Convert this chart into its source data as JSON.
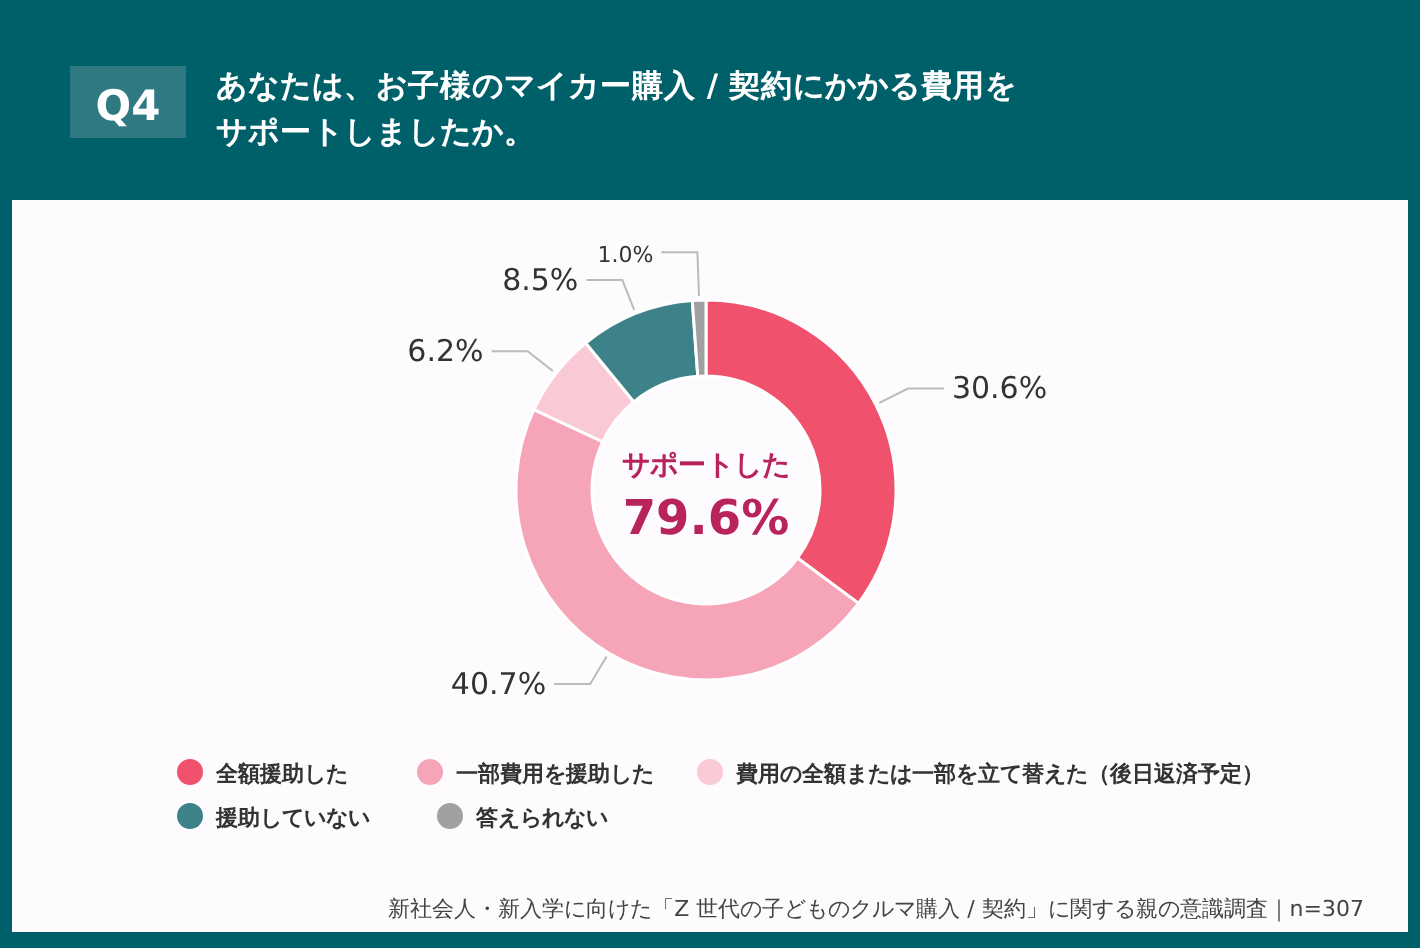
{
  "chart_data": {
    "type": "donut",
    "title": "あなたは、お子様のマイカー購入 / 契約にかかる費用をサポートしましたか。",
    "subtitle": "Q4",
    "categories": [
      "全額援助した",
      "一部費用を援助した",
      "費用の全額または一部を立て替えた（後日返済予定）",
      "援助していない",
      "答えられない"
    ],
    "values": [
      30.6,
      40.7,
      6.2,
      8.5,
      1.0
    ],
    "colors": [
      "#f0526e",
      "#f6a4b8",
      "#f9c9d6",
      "#3d8189",
      "#a0a0a0"
    ],
    "value_labels": [
      "30.6%",
      "40.7%",
      "6.2%",
      "8.5%",
      "1.0%"
    ],
    "legend": "bottom",
    "annotations": [
      "サポートした",
      "79.6%",
      "新社会人・新入学に向けた「Z 世代の子どものクルマ購入 / 契約」に関する親の意識調査｜n=307"
    ]
  }
}
